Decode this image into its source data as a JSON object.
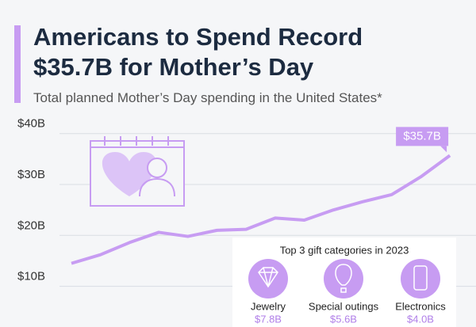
{
  "chart_data": {
    "type": "line",
    "title": "Americans to Spend Record $35.7B for Mother’s Day",
    "subtitle": "Total planned Mother’s Day spending in the United States*",
    "categories": [
      null,
      null,
      null,
      null,
      null,
      null,
      null,
      null,
      null,
      null,
      null,
      null,
      null,
      null
    ],
    "values": [
      14.5,
      16.2,
      18.6,
      20.6,
      19.8,
      21.0,
      21.2,
      23.4,
      23.0,
      25.0,
      26.6,
      28.0,
      31.5,
      35.7
    ],
    "value_labels": [
      null,
      null,
      null,
      null,
      null,
      null,
      null,
      null,
      null,
      null,
      null,
      null,
      null,
      "$35.7B"
    ],
    "color": "#c79cf2",
    "ylim": [
      2,
      44
    ],
    "yticks": [
      {
        "value": 10,
        "label": "$10B"
      },
      {
        "value": 20,
        "label": "$20B"
      },
      {
        "value": 30,
        "label": "$30B"
      },
      {
        "value": 40,
        "label": "$40B"
      }
    ],
    "grid": true,
    "inset": {
      "title": "Top 3 gift categories in 2023",
      "categories": [
        "Jewelry",
        "Special outings",
        "Electronics"
      ],
      "values": [
        7.8,
        5.6,
        4.0
      ],
      "value_labels": [
        "$7.8B",
        "$5.6B",
        "$4.0B"
      ]
    }
  }
}
